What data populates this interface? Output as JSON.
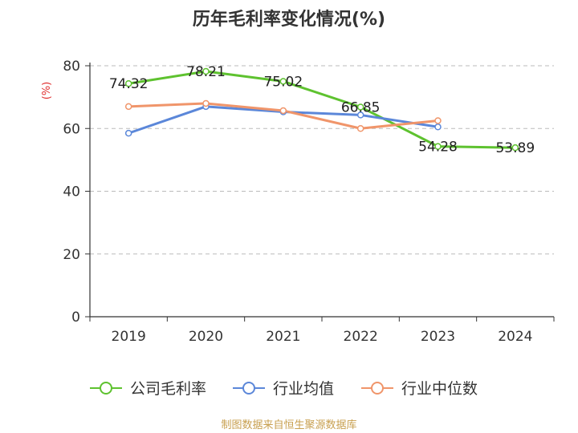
{
  "chart_data": {
    "type": "line",
    "title": "历年毛利率变化情况(%)",
    "ylabel": "(%)",
    "xlabel": "",
    "categories": [
      "2019",
      "2020",
      "2021",
      "2022",
      "2023",
      "2024"
    ],
    "ylim": [
      0,
      80
    ],
    "yticks": [
      0,
      20,
      40,
      60,
      80
    ],
    "grid": true,
    "legend_position": "bottom",
    "series": [
      {
        "name": "公司毛利率",
        "color": "#5ec22f",
        "values": [
          74.32,
          78.21,
          75.02,
          66.85,
          54.28,
          53.89
        ],
        "labels": [
          "74.32",
          "78.21",
          "75.02",
          "66.85",
          "54.28",
          "53.89"
        ]
      },
      {
        "name": "行业均值",
        "color": "#5b87d9",
        "values": [
          58.5,
          67.0,
          65.3,
          64.3,
          60.5,
          null
        ]
      },
      {
        "name": "行业中位数",
        "color": "#f0956a",
        "values": [
          67.0,
          68.0,
          65.7,
          60.0,
          62.5,
          null
        ]
      }
    ]
  },
  "footer": {
    "source": "制图数据来自恒生聚源数据库"
  }
}
